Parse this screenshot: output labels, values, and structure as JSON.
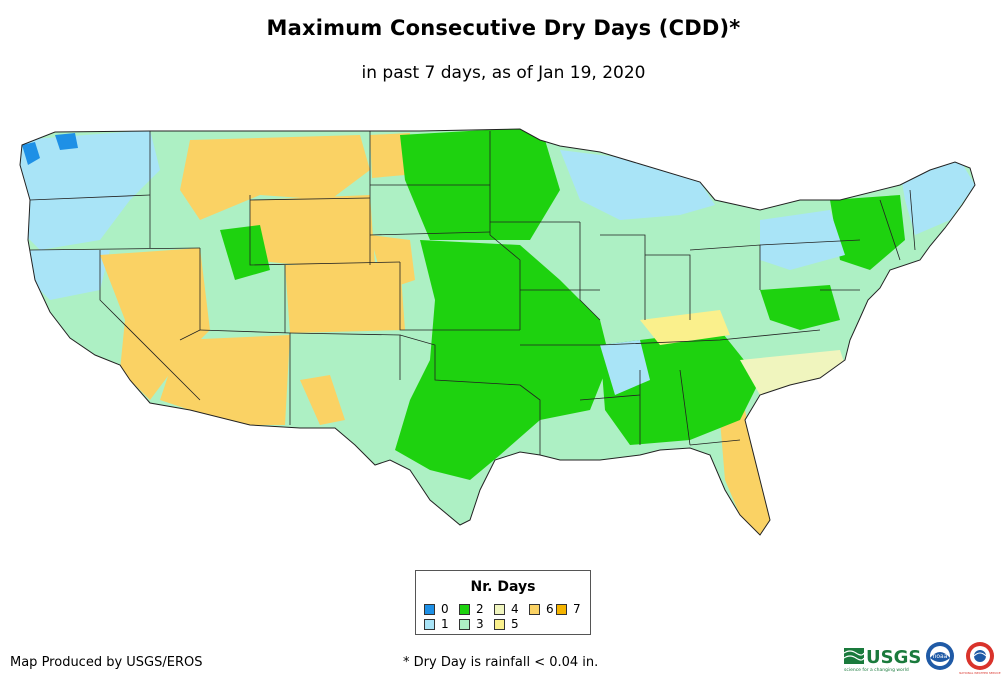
{
  "title": "Maximum Consecutive Dry Days (CDD)*",
  "subtitle": "in past 7 days, as of Jan 19, 2020",
  "legend": {
    "title": "Nr. Days",
    "items": [
      {
        "label": "0",
        "color": "#1e90e6"
      },
      {
        "label": "1",
        "color": "#a9e4f7"
      },
      {
        "label": "2",
        "color": "#1ed20f"
      },
      {
        "label": "3",
        "color": "#adf0c4"
      },
      {
        "label": "4",
        "color": "#f0f5be"
      },
      {
        "label": "5",
        "color": "#faf08c"
      },
      {
        "label": "6",
        "color": "#fad264"
      },
      {
        "label": "7",
        "color": "#f5b400"
      }
    ]
  },
  "credit": "Map Produced by USGS/EROS",
  "footnote": "* Dry Day is rainfall < 0.04 in.",
  "logos": {
    "usgs": "USGS",
    "usgs_tagline": "science for a changing world",
    "noaa": "noaa",
    "nws": "NATIONAL WEATHER SERVICE"
  }
}
